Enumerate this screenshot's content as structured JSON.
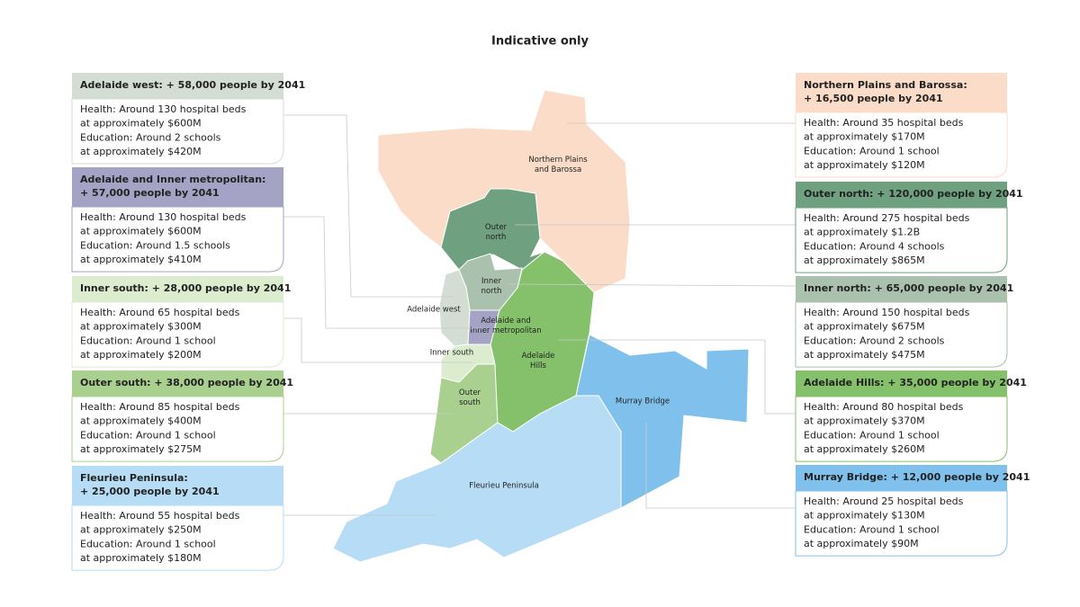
{
  "title": "Indicative only",
  "regions": [
    {
      "label": [
        "Northern Plains",
        "and Barossa"
      ],
      "color": "#fbdcc8"
    },
    {
      "label": [
        "Outer",
        "north"
      ],
      "color": "#6fa07f"
    },
    {
      "label": [
        "Inner",
        "north"
      ],
      "color": "#a9c1ad"
    },
    {
      "label": [
        "Adelaide west"
      ],
      "color": "#d4ddd4"
    },
    {
      "label": [
        "Adelaide and",
        "Inner metropolitan"
      ],
      "color": "#a5a3c5"
    },
    {
      "label": [
        "Inner south"
      ],
      "color": "#dbeccf"
    },
    {
      "label": [
        "Outer",
        "south"
      ],
      "color": "#a9d08e"
    },
    {
      "label": [
        "Adelaide",
        "Hills"
      ],
      "color": "#85c06a"
    },
    {
      "label": [
        "Murray Bridge"
      ],
      "color": "#7fc1ec"
    },
    {
      "label": [
        "Fleurieu Peninsula"
      ],
      "color": "#b7dcf5"
    }
  ],
  "cards": [
    {
      "heading": [
        "Adelaide west: + 58,000 people by 2041"
      ],
      "color": "#d4ddd4",
      "lines": [
        "Health: Around 130 hospital beds",
        "at approximately $600M",
        "Education: Around 2 schools",
        "at approximately $420M"
      ]
    },
    {
      "heading": [
        "Adelaide and Inner metropolitan:",
        "+ 57,000 people by 2041"
      ],
      "color": "#a5a3c5",
      "lines": [
        "Health: Around 130 hospital beds",
        "at approximately $600M",
        "Education: Around 1.5 schools",
        "at approximately $410M"
      ]
    },
    {
      "heading": [
        "Inner south: + 28,000 people by 2041"
      ],
      "color": "#dbeccf",
      "lines": [
        "Health: Around 65 hospital beds",
        "at approximately $300M",
        "Education: Around 1 school",
        "at approximately $200M"
      ]
    },
    {
      "heading": [
        "Outer south: + 38,000 people by 2041"
      ],
      "color": "#a9d08e",
      "lines": [
        "Health: Around 85 hospital beds",
        "at approximately $400M",
        "Education: Around 1 school",
        "at approximately $275M"
      ]
    },
    {
      "heading": [
        "Fleurieu Peninsula:",
        "+ 25,000 people by 2041"
      ],
      "color": "#b7dcf5",
      "lines": [
        "Health: Around 55 hospital beds",
        "at approximately $250M",
        "Education: Around 1 school",
        "at approximately $180M"
      ]
    },
    {
      "heading": [
        "Northern Plains and Barossa:",
        "+ 16,500 people by 2041"
      ],
      "color": "#fbdcc8",
      "lines": [
        "Health: Around 35 hospital beds",
        "at approximately $170M",
        "Education: Around 1 school",
        "at approximately $120M"
      ]
    },
    {
      "heading": [
        "Outer north: + 120,000 people by 2041"
      ],
      "color": "#6fa07f",
      "lines": [
        "Health: Around 275 hospital beds",
        "at approximately $1.2B",
        "Education: Around 4 schools",
        "at approximately $865M"
      ]
    },
    {
      "heading": [
        "Inner north: + 65,000 people by 2041"
      ],
      "color": "#a9c1ad",
      "lines": [
        "Health: Around 150 hospital beds",
        "at approximately $675M",
        "Education: Around 2 schools",
        "at approximately $475M"
      ]
    },
    {
      "heading": [
        "Adelaide Hills: + 35,000 people by 2041"
      ],
      "color": "#85c06a",
      "lines": [
        "Health: Around 80 hospital beds",
        "at approximately $370M",
        "Education: Around 1 school",
        "at approximately $260M"
      ]
    },
    {
      "heading": [
        "Murray Bridge: + 12,000 people by 2041"
      ],
      "color": "#7fc1ec",
      "lines": [
        "Health: Around 25 hospital beds",
        "at approximately $130M",
        "Education: Around 1 school",
        "at approximately $90M"
      ]
    }
  ]
}
